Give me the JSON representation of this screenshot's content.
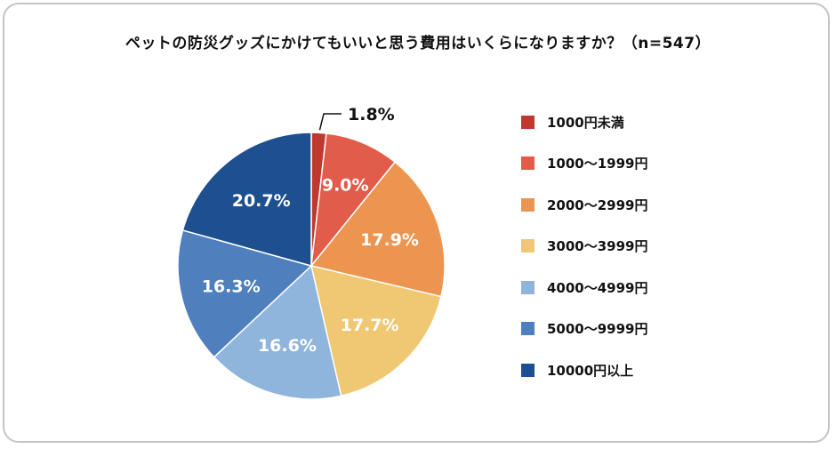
{
  "chart_data": {
    "type": "pie",
    "title": "ペットの防災グッズにかけてもいいと思う費用はいくらになりますか？（n=547）",
    "start": "top, clockwise",
    "categories": [
      "1000円未満",
      "1000〜1999円",
      "2000〜2999円",
      "3000〜3999円",
      "4000〜4999円",
      "5000〜9999円",
      "10000円以上"
    ],
    "values": [
      1.8,
      9.0,
      17.9,
      17.7,
      16.6,
      16.3,
      20.7
    ],
    "data_labels": [
      "1.8%",
      "9.0%",
      "17.9%",
      "17.7%",
      "16.6%",
      "16.3%",
      "20.7%"
    ],
    "colors": [
      "#c0392f",
      "#e25c4c",
      "#ec9550",
      "#f0c772",
      "#8fb5dd",
      "#4f7fbd",
      "#1e4f8f"
    ],
    "legend": "right"
  }
}
